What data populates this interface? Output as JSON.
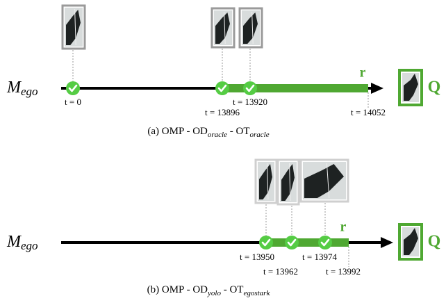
{
  "panels": [
    {
      "axis_label": {
        "main": "M",
        "sub": "ego"
      },
      "result_label": "r",
      "query_label": "Q",
      "times": [
        "t = 0",
        "t = 13896",
        "t = 13920",
        "t = 14052"
      ],
      "caption": {
        "prefix": "(a) OMP - OD",
        "od_sub": "oracle",
        "middle": " - OT",
        "ot_sub": "oracle"
      }
    },
    {
      "axis_label": {
        "main": "M",
        "sub": "ego"
      },
      "result_label": "r",
      "query_label": "Q",
      "times": [
        "t = 13950",
        "t = 13962",
        "t = 13974",
        "t = 13992"
      ],
      "caption": {
        "prefix": "(b) OMP - OD",
        "od_sub": "yolo",
        "middle": " - OT",
        "ot_sub": "egostark"
      }
    }
  ]
}
